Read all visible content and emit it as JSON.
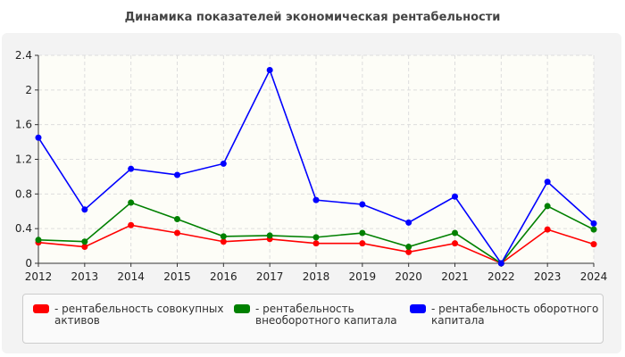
{
  "chart_data": {
    "type": "line",
    "title": "Динамика показателей экономическая рентабельности",
    "x": [
      "2012",
      "2013",
      "2014",
      "2015",
      "2016",
      "2017",
      "2018",
      "2019",
      "2020",
      "2021",
      "2022",
      "2023",
      "2024"
    ],
    "ylim": [
      0,
      2.4
    ],
    "yticks": [
      "0",
      "0.4",
      "0.8",
      "1.2",
      "1.6",
      "2",
      "2.4"
    ],
    "grid": true,
    "legend_position": "bottom",
    "series": [
      {
        "name": "- рентабельность совокупных активов",
        "color": "#ff0000",
        "values": [
          0.24,
          0.19,
          0.44,
          0.35,
          0.25,
          0.28,
          0.23,
          0.23,
          0.13,
          0.23,
          0,
          0.39,
          0.22
        ]
      },
      {
        "name": "- рентабельность внеоборотного капитала",
        "color": "#008000",
        "values": [
          0.27,
          0.25,
          0.7,
          0.51,
          0.31,
          0.32,
          0.3,
          0.35,
          0.19,
          0.35,
          0,
          0.66,
          0.39
        ]
      },
      {
        "name": "- рентабельность оборотного капитала",
        "color": "#0000ff",
        "values": [
          1.45,
          0.62,
          1.09,
          1.02,
          1.15,
          2.23,
          0.73,
          0.68,
          0.47,
          0.77,
          0,
          0.94,
          0.46
        ]
      }
    ]
  }
}
